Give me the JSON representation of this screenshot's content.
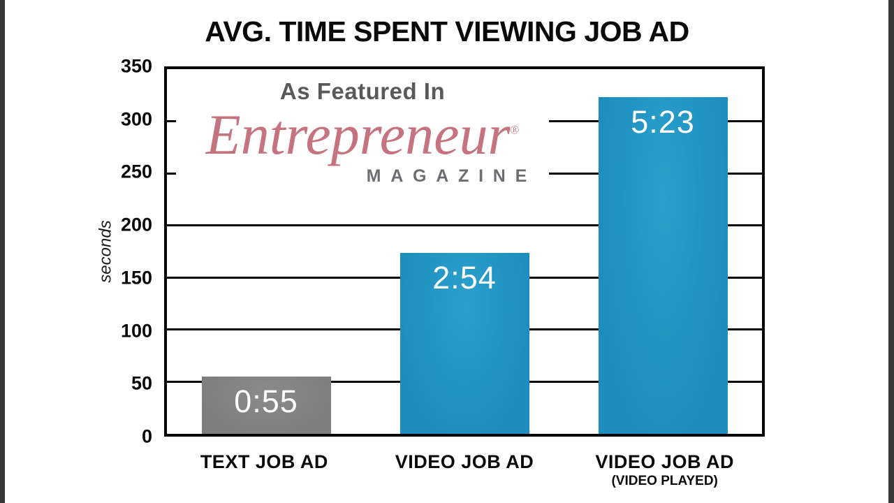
{
  "chart_data": {
    "type": "bar",
    "title": "AVG. TIME SPENT VIEWING JOB AD",
    "ylabel": "seconds",
    "ylim": [
      0,
      350
    ],
    "yticks": [
      350,
      300,
      250,
      200,
      150,
      100,
      50,
      0
    ],
    "grid": true,
    "categories": [
      "TEXT JOB AD",
      "VIDEO JOB AD",
      "VIDEO JOB AD"
    ],
    "category_sublabels": [
      "",
      "",
      "(VIDEO PLAYED)"
    ],
    "values": [
      55,
      174,
      323
    ],
    "value_labels": [
      "0:55",
      "2:54",
      "5:23"
    ],
    "bar_colors": [
      "#7e7e7e",
      "#1d8dbd",
      "#1d8dbd"
    ],
    "bar_colors_light": [
      "#8a8a8a",
      "#2aa0cd",
      "#2aa0cd"
    ]
  },
  "overlay": {
    "featured_text": "As Featured In",
    "logo_text": "Entrepreneur",
    "registered_mark": "®",
    "magazine_text": "MAGAZINE",
    "logo_color": "#c4737f",
    "featured_color": "#58595b",
    "magazine_color": "#6d6e71"
  }
}
